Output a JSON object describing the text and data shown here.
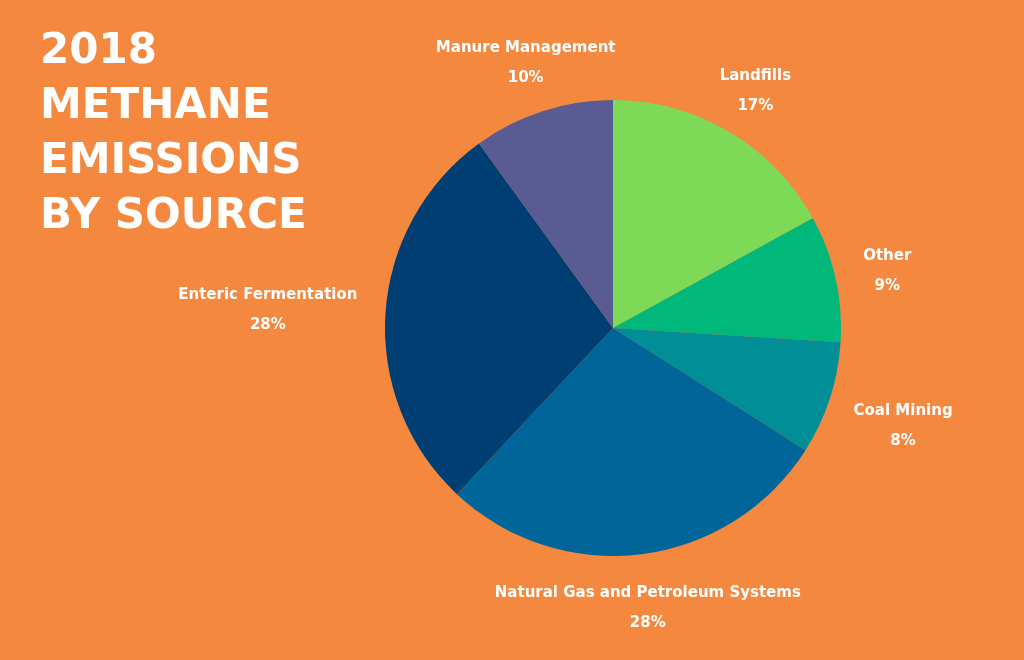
{
  "chart_data": {
    "type": "pie",
    "title": "2018\nMETHANE\nEMISSIONS\nBY SOURCE",
    "categories": [
      "Landfills",
      "Other",
      "Coal Mining",
      "Natural Gas and Petroleum Systems",
      "Enteric Fermentation",
      "Manure Management"
    ],
    "values": [
      17,
      9,
      8,
      28,
      28,
      10
    ],
    "value_labels": [
      "17%",
      "9%",
      "8%",
      "28%",
      "28%",
      "10%"
    ],
    "colors": [
      "#7ed957",
      "#00b87a",
      "#008e97",
      "#006699",
      "#003f73",
      "#5b5b94"
    ]
  }
}
